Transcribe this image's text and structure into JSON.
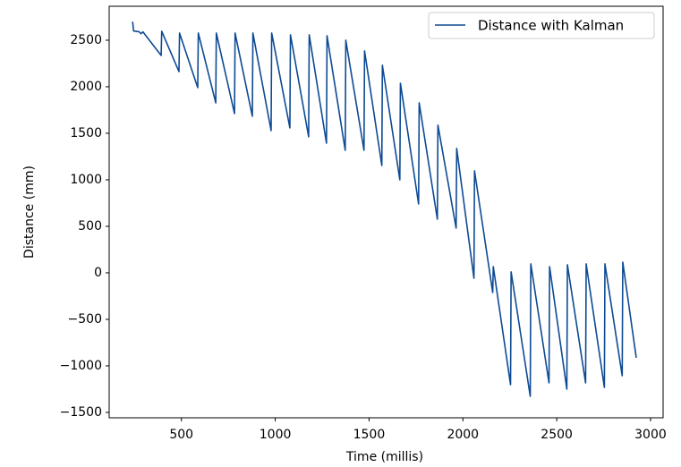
{
  "chart_data": {
    "type": "line",
    "xlabel": "Time (millis)",
    "ylabel": "Distance (mm)",
    "x": [
      240,
      245,
      275,
      285,
      295,
      392,
      395,
      487,
      490,
      587,
      590,
      683,
      686,
      783,
      786,
      878,
      881,
      978,
      981,
      1078,
      1081,
      1178,
      1181,
      1273,
      1276,
      1373,
      1376,
      1473,
      1476,
      1568,
      1571,
      1664,
      1667,
      1764,
      1767,
      1864,
      1867,
      1964,
      1967,
      2059,
      2062,
      2159,
      2162,
      2254,
      2257,
      2359,
      2362,
      2459,
      2462,
      2554,
      2557,
      2654,
      2657,
      2754,
      2757,
      2849,
      2852,
      2924
    ],
    "series": [
      {
        "name": "Distance with Kalman",
        "color": "#0d4a94",
        "values": [
          2700,
          2600,
          2590,
          2570,
          2590,
          2336,
          2596,
          2163,
          2577,
          1990,
          2577,
          1827,
          2577,
          1712,
          2577,
          1683,
          2577,
          1529,
          2577,
          1558,
          2558,
          1462,
          2558,
          1394,
          2548,
          1317,
          2500,
          1317,
          2385,
          1154,
          2231,
          1000,
          2038,
          740,
          1827,
          577,
          1587,
          481,
          1337,
          -58,
          1096,
          -212,
          67,
          -1202,
          10,
          -1327,
          96,
          -1183,
          67,
          -1250,
          87,
          -1183,
          96,
          -1231,
          96,
          -1106,
          115,
          -913
        ]
      }
    ],
    "xlim": [
      115,
      3067
    ],
    "ylim": [
      -1558,
      2865
    ],
    "xticks": [
      500,
      1000,
      1500,
      2000,
      2500,
      3000
    ],
    "yticks": [
      {
        "value": -1500,
        "label": "−1500"
      },
      {
        "value": -1000,
        "label": "−1000"
      },
      {
        "value": -500,
        "label": "−500"
      },
      0,
      500,
      1000,
      1500,
      2000,
      2500
    ],
    "legend": "upper right",
    "grid": false
  }
}
